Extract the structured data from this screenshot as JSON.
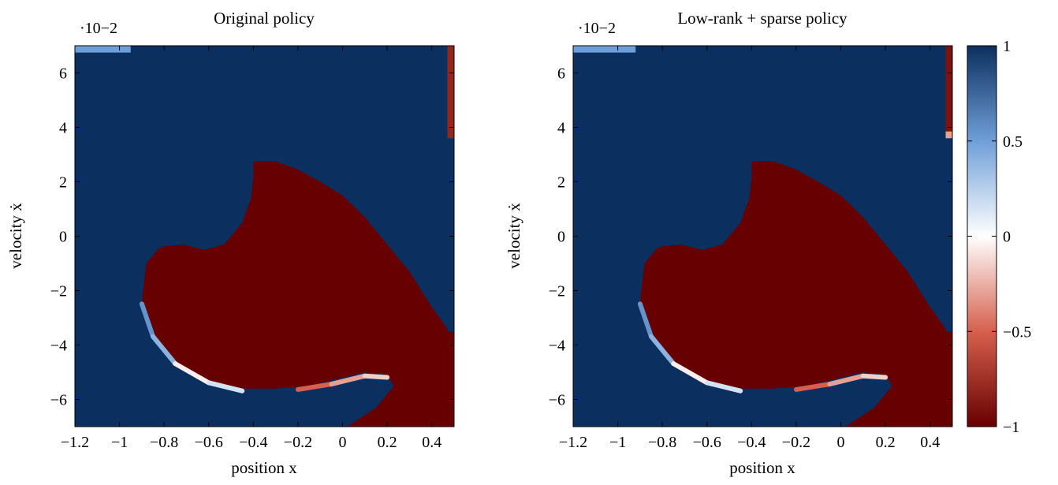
{
  "figure": {
    "colormap": {
      "neg": "#670000",
      "mid": "#ffffff",
      "pos": "#0b2f5e"
    },
    "colorbar": {
      "ticks": [
        1,
        0.5,
        0,
        -0.5,
        -1
      ],
      "tick_labels": [
        "1",
        "0.5",
        "0",
        "−0.5",
        "−1"
      ],
      "range": [
        -1,
        1
      ]
    }
  },
  "chart_data": [
    {
      "type": "heatmap",
      "title": "Original policy",
      "xlabel": "position x",
      "ylabel": "velocity ẋ",
      "y_multiplier": "·10−2",
      "xlim": [
        -1.2,
        0.5
      ],
      "ylim": [
        -7,
        7
      ],
      "xticks": [
        -1.2,
        -1,
        -0.8,
        -0.6,
        -0.4,
        -0.2,
        0,
        0.2,
        0.4
      ],
      "xtick_labels": [
        "−1.2",
        "−1",
        "−0.8",
        "−0.6",
        "−0.4",
        "−0.2",
        "0",
        "0.2",
        "0.4"
      ],
      "yticks": [
        6,
        4,
        2,
        0,
        -2,
        -4,
        -6
      ],
      "ytick_labels": [
        "6",
        "4",
        "2",
        "0",
        "−2",
        "−4",
        "−6"
      ],
      "background_value": 1,
      "red_region_value": -1,
      "red_region_boundary": [
        [
          -0.4,
          2.75
        ],
        [
          -0.3,
          2.75
        ],
        [
          -0.2,
          2.45
        ],
        [
          -0.1,
          2.0
        ],
        [
          0.0,
          1.5
        ],
        [
          0.1,
          0.7
        ],
        [
          0.2,
          -0.3
        ],
        [
          0.3,
          -1.3
        ],
        [
          0.4,
          -2.6
        ],
        [
          0.47,
          -3.4
        ],
        [
          0.47,
          -3.5
        ],
        [
          0.5,
          -3.5
        ],
        [
          0.5,
          -7.0
        ],
        [
          0.02,
          -7.0
        ],
        [
          0.15,
          -6.3
        ],
        [
          0.23,
          -5.5
        ],
        [
          0.2,
          -5.1
        ],
        [
          0.1,
          -5.0
        ],
        [
          0.0,
          -5.2
        ],
        [
          -0.15,
          -5.5
        ],
        [
          -0.3,
          -5.6
        ],
        [
          -0.45,
          -5.6
        ],
        [
          -0.6,
          -5.3
        ],
        [
          -0.75,
          -4.6
        ],
        [
          -0.85,
          -3.6
        ],
        [
          -0.9,
          -2.4
        ],
        [
          -0.88,
          -1.0
        ],
        [
          -0.82,
          -0.4
        ],
        [
          -0.72,
          -0.3
        ],
        [
          -0.62,
          -0.5
        ],
        [
          -0.53,
          -0.3
        ],
        [
          -0.45,
          0.5
        ],
        [
          -0.41,
          1.4
        ],
        [
          -0.4,
          2.2
        ]
      ],
      "transition_bands": [
        {
          "name": "lower-left band",
          "points": [
            [
              -0.9,
              -2.4
            ],
            [
              -0.85,
              -3.6
            ],
            [
              -0.75,
              -4.6
            ],
            [
              -0.6,
              -5.3
            ],
            [
              -0.45,
              -5.6
            ]
          ],
          "values": [
            0.5,
            0.6,
            0.2,
            -0.3,
            0.6
          ]
        },
        {
          "name": "lower-right band",
          "points": [
            [
              -0.2,
              -5.55
            ],
            [
              -0.05,
              -5.35
            ],
            [
              0.1,
              -5.05
            ],
            [
              0.2,
              -5.1
            ]
          ],
          "values": [
            -0.6,
            -0.4,
            -0.2,
            -0.1
          ]
        }
      ],
      "corner_patches": [
        {
          "name": "top-left strip",
          "x": [
            -1.2,
            -0.95
          ],
          "y": [
            6.75,
            7.0
          ],
          "value": 0.5
        },
        {
          "name": "right-edge column",
          "x": [
            0.47,
            0.5
          ],
          "y": [
            3.6,
            7.0
          ],
          "value": -0.8
        }
      ]
    },
    {
      "type": "heatmap",
      "title": "Low-rank + sparse policy",
      "xlabel": "position x",
      "ylabel": "velocity ẋ",
      "y_multiplier": "·10−2",
      "xlim": [
        -1.2,
        0.5
      ],
      "ylim": [
        -7,
        7
      ],
      "xticks": [
        -1.2,
        -1,
        -0.8,
        -0.6,
        -0.4,
        -0.2,
        0,
        0.2,
        0.4
      ],
      "xtick_labels": [
        "−1.2",
        "−1",
        "−0.8",
        "−0.6",
        "−0.4",
        "−0.2",
        "0",
        "0.2",
        "0.4"
      ],
      "yticks": [
        6,
        4,
        2,
        0,
        -2,
        -4,
        -6
      ],
      "ytick_labels": [
        "6",
        "4",
        "2",
        "0",
        "−2",
        "−4",
        "−6"
      ],
      "background_value": 1,
      "red_region_value": -1,
      "red_region_boundary": [
        [
          -0.4,
          2.75
        ],
        [
          -0.3,
          2.75
        ],
        [
          -0.2,
          2.45
        ],
        [
          -0.1,
          2.0
        ],
        [
          0.0,
          1.5
        ],
        [
          0.1,
          0.7
        ],
        [
          0.2,
          -0.3
        ],
        [
          0.3,
          -1.3
        ],
        [
          0.4,
          -2.6
        ],
        [
          0.47,
          -3.4
        ],
        [
          0.47,
          -3.5
        ],
        [
          0.5,
          -3.5
        ],
        [
          0.5,
          -7.0
        ],
        [
          0.02,
          -7.0
        ],
        [
          0.15,
          -6.3
        ],
        [
          0.23,
          -5.5
        ],
        [
          0.2,
          -5.1
        ],
        [
          0.1,
          -5.0
        ],
        [
          0.0,
          -5.2
        ],
        [
          -0.15,
          -5.5
        ],
        [
          -0.3,
          -5.6
        ],
        [
          -0.45,
          -5.6
        ],
        [
          -0.6,
          -5.3
        ],
        [
          -0.75,
          -4.6
        ],
        [
          -0.85,
          -3.6
        ],
        [
          -0.9,
          -2.4
        ],
        [
          -0.88,
          -1.0
        ],
        [
          -0.82,
          -0.4
        ],
        [
          -0.72,
          -0.3
        ],
        [
          -0.62,
          -0.5
        ],
        [
          -0.53,
          -0.3
        ],
        [
          -0.45,
          0.5
        ],
        [
          -0.41,
          1.4
        ],
        [
          -0.4,
          2.2
        ]
      ],
      "transition_bands": [
        {
          "name": "lower-left band",
          "points": [
            [
              -0.9,
              -2.4
            ],
            [
              -0.85,
              -3.6
            ],
            [
              -0.75,
              -4.6
            ],
            [
              -0.6,
              -5.3
            ],
            [
              -0.45,
              -5.6
            ]
          ],
          "values": [
            0.5,
            0.6,
            0.2,
            -0.3,
            0.6
          ]
        },
        {
          "name": "lower-right band",
          "points": [
            [
              -0.2,
              -5.55
            ],
            [
              -0.05,
              -5.35
            ],
            [
              0.1,
              -5.05
            ],
            [
              0.2,
              -5.1
            ]
          ],
          "values": [
            -0.6,
            -0.4,
            -0.2,
            -0.1
          ]
        }
      ],
      "corner_patches": [
        {
          "name": "top-left strip",
          "x": [
            -1.2,
            -0.92
          ],
          "y": [
            6.75,
            7.0
          ],
          "value": 0.5
        },
        {
          "name": "right-edge column",
          "x": [
            0.47,
            0.5
          ],
          "y": [
            3.85,
            7.0
          ],
          "value": -0.9
        },
        {
          "name": "right-edge small patch",
          "x": [
            0.47,
            0.5
          ],
          "y": [
            3.6,
            3.85
          ],
          "value": -0.3
        }
      ]
    }
  ]
}
